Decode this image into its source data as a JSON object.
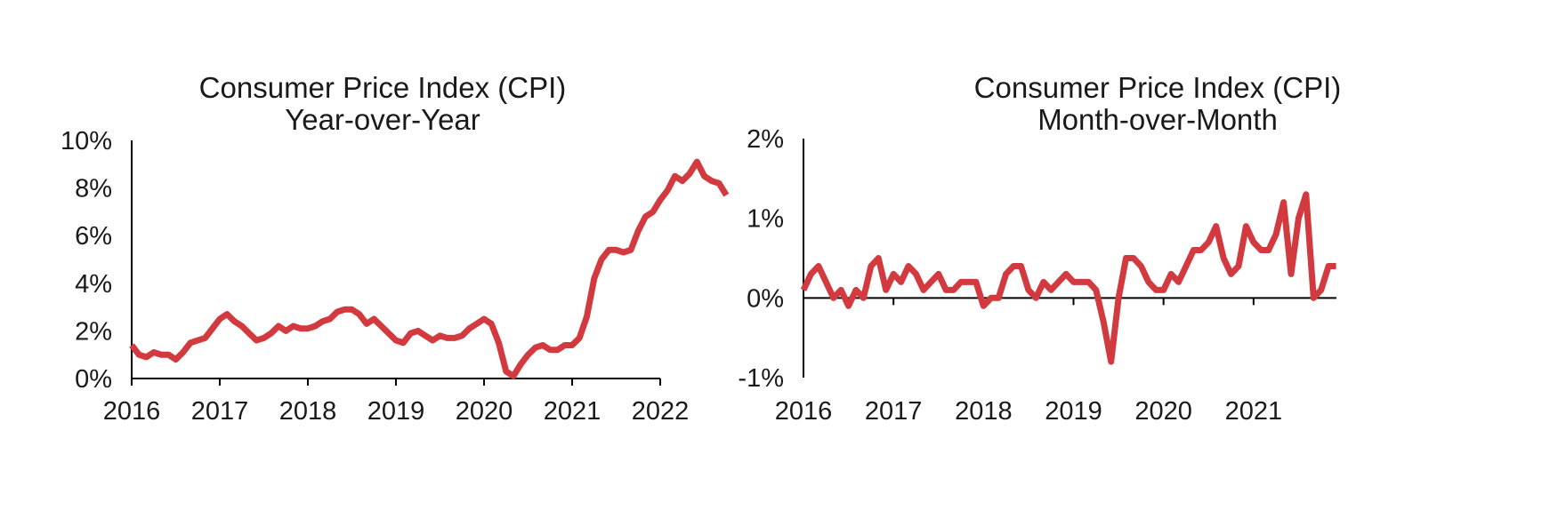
{
  "colors": {
    "line": "#d23a3f",
    "axis": "#000000",
    "text": "#1a1a1a"
  },
  "chart_data": [
    {
      "type": "line",
      "title": "Consumer Price Index (CPI)",
      "subtitle": "Year-over-Year",
      "xlabel": "",
      "ylabel": "",
      "x_tick_labels": [
        "2016",
        "2017",
        "2018",
        "2019",
        "2020",
        "2021",
        "2022"
      ],
      "y_tick_labels": [
        "0%",
        "2%",
        "4%",
        "6%",
        "8%",
        "10%"
      ],
      "xlim": [
        2016,
        2022
      ],
      "ylim": [
        0,
        10
      ],
      "grid": false,
      "legend": "none",
      "series": [
        {
          "x_start": "2016-01",
          "frequency": "monthly",
          "values": [
            1.4,
            1.0,
            0.9,
            1.1,
            1.0,
            1.0,
            0.8,
            1.1,
            1.5,
            1.6,
            1.7,
            2.1,
            2.5,
            2.7,
            2.4,
            2.2,
            1.9,
            1.6,
            1.7,
            1.9,
            2.2,
            2.0,
            2.2,
            2.1,
            2.1,
            2.2,
            2.4,
            2.5,
            2.8,
            2.9,
            2.9,
            2.7,
            2.3,
            2.5,
            2.2,
            1.9,
            1.6,
            1.5,
            1.9,
            2.0,
            1.8,
            1.6,
            1.8,
            1.7,
            1.7,
            1.8,
            2.1,
            2.3,
            2.5,
            2.3,
            1.5,
            0.3,
            0.1,
            0.6,
            1.0,
            1.3,
            1.4,
            1.2,
            1.2,
            1.4,
            1.4,
            1.7,
            2.6,
            4.2,
            5.0,
            5.4,
            5.4,
            5.3,
            5.4,
            6.2,
            6.8,
            7.0,
            7.5,
            7.9,
            8.5,
            8.3,
            8.6,
            9.1,
            8.5,
            8.3,
            8.2,
            7.7
          ]
        }
      ]
    },
    {
      "type": "line",
      "title": "Consumer Price Index (CPI)",
      "subtitle": "Month-over-Month",
      "xlabel": "",
      "ylabel": "",
      "x_tick_labels": [
        "2016",
        "2017",
        "2018",
        "2019",
        "2020",
        "2021"
      ],
      "y_tick_labels": [
        "-1%",
        "0%",
        "1%",
        "2%"
      ],
      "xlim": [
        2016,
        2022
      ],
      "ylim": [
        -1,
        2
      ],
      "grid": false,
      "legend": "none",
      "series": [
        {
          "x_start": "2016-01",
          "frequency": "monthly",
          "values": [
            0.1,
            0.3,
            0.4,
            0.2,
            0.0,
            0.1,
            -0.1,
            0.1,
            0.0,
            0.4,
            0.5,
            0.1,
            0.3,
            0.2,
            0.4,
            0.3,
            0.1,
            0.2,
            0.3,
            0.1,
            0.1,
            0.2,
            0.2,
            0.2,
            -0.1,
            0.0,
            0.0,
            0.3,
            0.4,
            0.4,
            0.1,
            0.0,
            0.2,
            0.1,
            0.2,
            0.3,
            0.2,
            0.2,
            0.2,
            0.1,
            -0.3,
            -0.8,
            0.0,
            0.5,
            0.5,
            0.4,
            0.2,
            0.1,
            0.1,
            0.3,
            0.2,
            0.4,
            0.6,
            0.6,
            0.7,
            0.9,
            0.5,
            0.3,
            0.4,
            0.9,
            0.7,
            0.6,
            0.6,
            0.8,
            1.2,
            0.3,
            1.0,
            1.3,
            0.0,
            0.1,
            0.4,
            0.4
          ]
        }
      ]
    }
  ]
}
